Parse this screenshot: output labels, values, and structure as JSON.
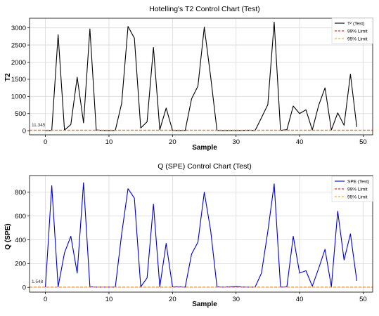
{
  "colors": {
    "t2_line": "#000000",
    "spe_line": "#0000cc",
    "limit99": "#cc0000",
    "limit95": "#e6a000"
  },
  "chart_data": [
    {
      "type": "line",
      "title": "Hotelling's T2 Control Chart (Test)",
      "xlabel": "Sample",
      "ylabel": "T2",
      "xlim": [
        -2.5,
        51.5
      ],
      "ylim": [
        -120,
        3280
      ],
      "x_ticks": [
        0,
        10,
        20,
        30,
        40,
        50
      ],
      "y_ticks": [
        0,
        500,
        1000,
        1500,
        2000,
        2500,
        3000
      ],
      "grid": true,
      "legend_position": "top-right",
      "annotation": "11.345",
      "series": [
        {
          "name": "T² (Test)",
          "x": [
            0,
            1,
            2,
            3,
            4,
            5,
            6,
            7,
            8,
            9,
            10,
            11,
            12,
            13,
            14,
            15,
            16,
            17,
            18,
            19,
            20,
            21,
            22,
            23,
            24,
            25,
            26,
            27,
            28,
            29,
            30,
            31,
            32,
            33,
            34,
            35,
            36,
            37,
            38,
            39,
            40,
            41,
            42,
            43,
            44,
            45,
            46,
            47,
            48,
            49
          ],
          "values": [
            5,
            10,
            2800,
            20,
            180,
            1560,
            230,
            2970,
            20,
            10,
            5,
            10,
            800,
            3040,
            2700,
            80,
            260,
            2430,
            30,
            660,
            10,
            5,
            10,
            930,
            1300,
            3020,
            1580,
            10,
            5,
            10,
            5,
            10,
            15,
            5,
            380,
            760,
            3170,
            10,
            30,
            720,
            500,
            610,
            20,
            740,
            1250,
            20,
            520,
            160,
            1650,
            110
          ]
        },
        {
          "name": "99% Limit",
          "values": [
            14.5
          ]
        },
        {
          "name": "95% Limit",
          "values": [
            11.345
          ]
        }
      ]
    },
    {
      "type": "line",
      "title": "Q (SPE) Control Chart (Test)",
      "xlabel": "Sample",
      "ylabel": "Q (SPE)",
      "xlim": [
        -2.5,
        51.5
      ],
      "ylim": [
        -40,
        940
      ],
      "x_ticks": [
        0,
        10,
        20,
        30,
        40,
        50
      ],
      "y_ticks": [
        0,
        200,
        400,
        600,
        800
      ],
      "grid": true,
      "legend_position": "top-right",
      "annotation": "1.548",
      "series": [
        {
          "name": "SPE (Test)",
          "x": [
            0,
            1,
            2,
            3,
            4,
            5,
            6,
            7,
            8,
            9,
            10,
            11,
            12,
            13,
            14,
            15,
            16,
            17,
            18,
            19,
            20,
            21,
            22,
            23,
            24,
            25,
            26,
            27,
            28,
            29,
            30,
            31,
            32,
            33,
            34,
            35,
            36,
            37,
            38,
            39,
            40,
            41,
            42,
            43,
            44,
            45,
            46,
            47,
            48,
            49
          ],
          "values": [
            2,
            855,
            5,
            290,
            430,
            120,
            880,
            5,
            2,
            2,
            2,
            2,
            450,
            830,
            750,
            5,
            80,
            700,
            5,
            370,
            5,
            5,
            2,
            280,
            380,
            800,
            480,
            5,
            2,
            5,
            8,
            3,
            2,
            2,
            120,
            470,
            870,
            2,
            5,
            430,
            120,
            140,
            10,
            160,
            320,
            5,
            640,
            230,
            450,
            55
          ]
        },
        {
          "name": "99% Limit",
          "values": [
            2.1
          ]
        },
        {
          "name": "95% Limit",
          "values": [
            1.548
          ]
        }
      ]
    }
  ]
}
